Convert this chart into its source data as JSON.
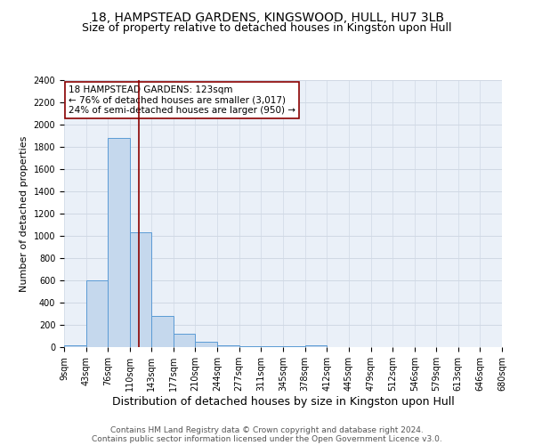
{
  "title": "18, HAMPSTEAD GARDENS, KINGSWOOD, HULL, HU7 3LB",
  "subtitle": "Size of property relative to detached houses in Kingston upon Hull",
  "xlabel": "Distribution of detached houses by size in Kingston upon Hull",
  "ylabel": "Number of detached properties",
  "bin_edges": [
    9,
    43,
    76,
    110,
    143,
    177,
    210,
    244,
    277,
    311,
    345,
    378,
    412,
    445,
    479,
    512,
    546,
    579,
    613,
    646,
    680
  ],
  "bar_heights": [
    20,
    600,
    1880,
    1030,
    280,
    120,
    50,
    20,
    5,
    5,
    5,
    20,
    3,
    2,
    1,
    1,
    0,
    0,
    0,
    0
  ],
  "bar_color": "#c5d8ed",
  "bar_edge_color": "#5b9bd5",
  "vline_x": 123,
  "vline_color": "#8b0000",
  "annotation_line1": "18 HAMPSTEAD GARDENS: 123sqm",
  "annotation_line2": "← 76% of detached houses are smaller (3,017)",
  "annotation_line3": "24% of semi-detached houses are larger (950) →",
  "annotation_box_color": "white",
  "annotation_box_edge_color": "#8b0000",
  "ylim": [
    0,
    2400
  ],
  "yticks": [
    0,
    200,
    400,
    600,
    800,
    1000,
    1200,
    1400,
    1600,
    1800,
    2000,
    2200,
    2400
  ],
  "grid_color": "#d0d8e4",
  "background_color": "#eaf0f8",
  "footer_line1": "Contains HM Land Registry data © Crown copyright and database right 2024.",
  "footer_line2": "Contains public sector information licensed under the Open Government Licence v3.0.",
  "title_fontsize": 10,
  "subtitle_fontsize": 9,
  "xlabel_fontsize": 9,
  "ylabel_fontsize": 8,
  "annotation_fontsize": 7.5,
  "footer_fontsize": 6.5,
  "tick_fontsize": 7
}
